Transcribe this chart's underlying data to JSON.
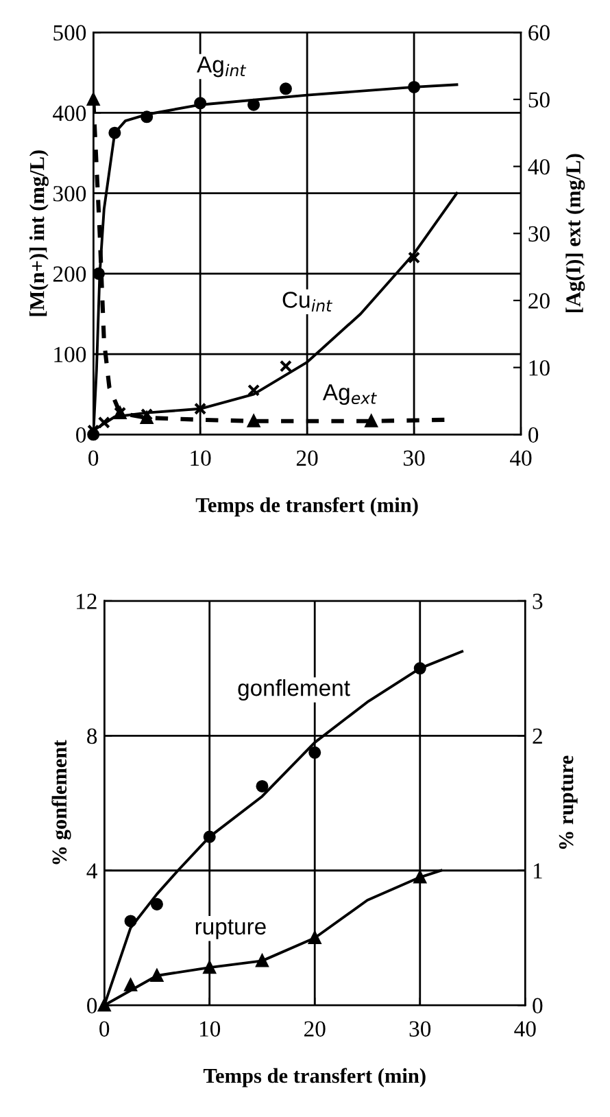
{
  "chart_data": [
    {
      "type": "line",
      "xlabel": "Temps de transfert (min)",
      "ylabel": "[M(n+)] int (mg/L)",
      "y2label": "[Ag(I)] ext (mg/L)",
      "xlim": [
        0,
        40
      ],
      "xticks": [
        0,
        10,
        20,
        30,
        40
      ],
      "ylim": [
        0,
        500
      ],
      "yticks": [
        0,
        100,
        200,
        300,
        400,
        500
      ],
      "y2lim": [
        0,
        60
      ],
      "y2ticks": [
        0,
        10,
        20,
        30,
        40,
        50,
        60
      ],
      "grid": true,
      "series": [
        {
          "type": "scatter",
          "color": "#000000",
          "marker": "circle",
          "x": [
            0,
            0.5,
            2,
            5,
            10,
            15,
            18,
            30
          ],
          "values": [
            0,
            200,
            375,
            395,
            412,
            410,
            430,
            432
          ]
        },
        {
          "color": "#000000",
          "line_style": "solid",
          "x": [
            0,
            0.3,
            0.6,
            1,
            2,
            3,
            5,
            10,
            20,
            30,
            34
          ],
          "values": [
            0,
            80,
            200,
            280,
            375,
            390,
            398,
            410,
            422,
            432,
            435
          ]
        },
        {
          "type": "scatter",
          "color": "#000000",
          "marker": "cross",
          "x": [
            0,
            1,
            2.5,
            5,
            10,
            15,
            18,
            30
          ],
          "values": [
            5,
            15,
            27,
            25,
            32,
            55,
            85,
            220
          ]
        },
        {
          "color": "#000000",
          "line_style": "solid",
          "x": [
            0,
            2,
            5,
            10,
            15,
            20,
            25,
            30,
            34
          ],
          "values": [
            5,
            22,
            27,
            32,
            50,
            90,
            150,
            225,
            300
          ]
        },
        {
          "type": "scatter",
          "color": "#000000",
          "marker": "triangle",
          "axis": "y2",
          "x": [
            0,
            2.5,
            5,
            15,
            26
          ],
          "values": [
            50,
            3.2,
            2.5,
            2,
            2
          ]
        },
        {
          "color": "#000000",
          "line_style": "dashed",
          "axis": "y2",
          "x": [
            0,
            0.3,
            0.6,
            1,
            1.5,
            2.5,
            5,
            10,
            15,
            20,
            26,
            33
          ],
          "values": [
            50,
            40,
            30,
            14,
            7,
            3.2,
            2.5,
            2.2,
            2,
            2,
            2,
            2.2
          ]
        }
      ],
      "annotations": [
        "Ag$_{int}$",
        "Cu$_{int}$",
        "Ag$_{ext}$"
      ]
    },
    {
      "type": "line",
      "xlabel": "Temps de transfert (min)",
      "ylabel": "% gonflement",
      "y2label": "% rupture",
      "xlim": [
        0,
        40
      ],
      "xticks": [
        0,
        10,
        20,
        30,
        40
      ],
      "ylim": [
        0,
        12
      ],
      "yticks": [
        0,
        4,
        8,
        12
      ],
      "y2lim": [
        0,
        3
      ],
      "y2ticks": [
        0,
        1,
        2,
        3
      ],
      "grid": true,
      "series": [
        {
          "type": "scatter",
          "color": "#000000",
          "marker": "circle",
          "x": [
            2.5,
            5,
            10,
            15,
            20,
            30
          ],
          "values": [
            2.5,
            3,
            5,
            6.5,
            7.5,
            10
          ]
        },
        {
          "color": "#000000",
          "line_style": "solid",
          "x": [
            0,
            2.5,
            5,
            7,
            10,
            15,
            20,
            25,
            30,
            34
          ],
          "values": [
            0,
            2.3,
            3.3,
            4,
            5,
            6.2,
            7.8,
            9,
            10,
            10.5
          ]
        },
        {
          "type": "scatter",
          "color": "#000000",
          "marker": "triangle",
          "axis": "y2",
          "x": [
            0,
            2.5,
            5,
            10,
            15,
            20,
            30
          ],
          "values": [
            0,
            0.15,
            0.22,
            0.28,
            0.33,
            0.5,
            0.95
          ]
        },
        {
          "color": "#000000",
          "line_style": "solid",
          "axis": "y2",
          "x": [
            0,
            5,
            10,
            15,
            20,
            25,
            30,
            32
          ],
          "values": [
            0,
            0.22,
            0.28,
            0.33,
            0.5,
            0.78,
            0.95,
            1.0
          ]
        }
      ],
      "annotations": [
        "gonflement",
        "rupture"
      ]
    }
  ]
}
